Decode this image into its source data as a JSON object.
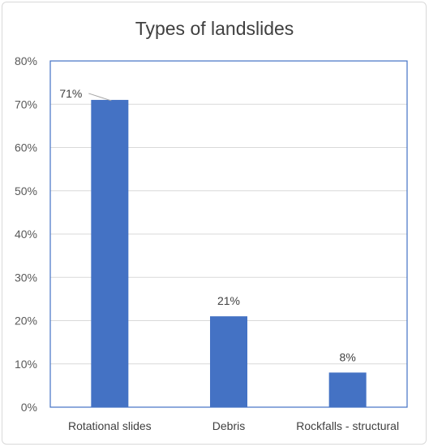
{
  "chart_data": {
    "type": "bar",
    "title": "Types of landslides",
    "categories": [
      "Rotational slides",
      "Debris",
      "Rockfalls - structural"
    ],
    "values": [
      71,
      21,
      8
    ],
    "data_labels": [
      "71%",
      "21%",
      "8%"
    ],
    "ylim": [
      0,
      80
    ],
    "y_tick_labels": [
      "0%",
      "10%",
      "20%",
      "30%",
      "40%",
      "50%",
      "60%",
      "70%",
      "80%"
    ],
    "xlabel": "",
    "ylabel": "",
    "grid": true,
    "legend": "none",
    "bar_color": "#4472c4",
    "plot_border_color": "#4472c4",
    "gridline_color": "#d9d9d9"
  }
}
